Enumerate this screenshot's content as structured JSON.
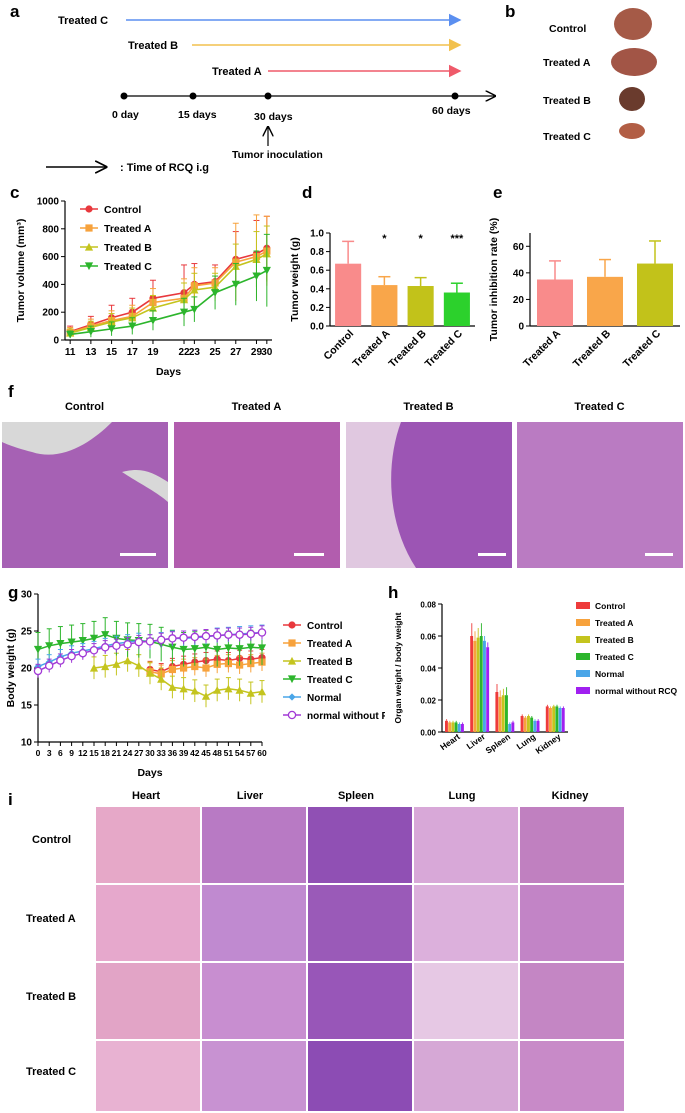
{
  "panels": {
    "a": "a",
    "b": "b",
    "c": "c",
    "d": "d",
    "e": "e",
    "f": "f",
    "g": "g",
    "h": "h",
    "i": "i"
  },
  "timeline": {
    "treatments": [
      {
        "label": "Treated C",
        "color": "#5b8ff0"
      },
      {
        "label": "Treated B",
        "color": "#f2c14e"
      },
      {
        "label": "Treated A",
        "color": "#ef5a6a"
      }
    ],
    "ticks": [
      "0 day",
      "15 days",
      "30 days",
      "60 days"
    ],
    "inoculation": "Tumor inoculation",
    "key": ": Time of RCQ i.g"
  },
  "tumor_photos": {
    "labels": [
      "Control",
      "Treated A",
      "Treated B",
      "Treated C"
    ]
  },
  "histology_f": {
    "labels": [
      "Control",
      "Treated A",
      "Treated B",
      "Treated C"
    ]
  },
  "organ_grid": {
    "columns": [
      "Heart",
      "Liver",
      "Spleen",
      "Lung",
      "Kidney"
    ],
    "rows": [
      "Control",
      "Treated A",
      "Treated B",
      "Treated C"
    ]
  },
  "chart_data": [
    {
      "id": "c",
      "type": "line",
      "title": "",
      "xlabel": "Days",
      "ylabel": "Tumor volume (mm³)",
      "x": [
        11,
        13,
        15,
        17,
        19,
        22,
        23,
        25,
        27,
        29,
        30
      ],
      "ylim": [
        0,
        1000
      ],
      "yticks": [
        0,
        200,
        400,
        600,
        800,
        1000
      ],
      "series": [
        {
          "name": "Control",
          "color": "#e8383d",
          "marker": "circle",
          "values": [
            60,
            110,
            160,
            200,
            300,
            340,
            400,
            420,
            580,
            620,
            660
          ],
          "errors": [
            40,
            60,
            90,
            100,
            130,
            200,
            150,
            120,
            200,
            240,
            230
          ]
        },
        {
          "name": "Treated A",
          "color": "#f7a23c",
          "marker": "square",
          "values": [
            55,
            100,
            140,
            170,
            270,
            300,
            390,
            410,
            560,
            600,
            640
          ],
          "errors": [
            35,
            50,
            70,
            80,
            100,
            140,
            130,
            110,
            280,
            300,
            250
          ]
        },
        {
          "name": "Treated B",
          "color": "#c4c41e",
          "marker": "triangle-up",
          "values": [
            50,
            90,
            130,
            160,
            230,
            290,
            360,
            380,
            530,
            580,
            620
          ],
          "errors": [
            30,
            45,
            60,
            70,
            90,
            120,
            120,
            100,
            160,
            200,
            200
          ]
        },
        {
          "name": "Treated C",
          "color": "#2cb52c",
          "marker": "triangle-down",
          "values": [
            40,
            60,
            80,
            100,
            140,
            200,
            220,
            340,
            400,
            460,
            500
          ],
          "errors": [
            25,
            40,
            50,
            60,
            70,
            100,
            90,
            120,
            150,
            180,
            260
          ]
        }
      ]
    },
    {
      "id": "d",
      "type": "bar",
      "ylabel": "Tumor weight (g)",
      "categories": [
        "Control",
        "Treated A",
        "Treated B",
        "Treated C"
      ],
      "values": [
        0.67,
        0.44,
        0.43,
        0.36
      ],
      "errors": [
        0.24,
        0.09,
        0.09,
        0.1
      ],
      "colors": [
        "#f98b8b",
        "#f9a64a",
        "#c2c21a",
        "#2cd12c"
      ],
      "significance": [
        "",
        "*",
        "*",
        "***"
      ],
      "ylim": [
        0,
        1.0
      ],
      "yticks": [
        "0.0",
        "0.2",
        "0.4",
        "0.6",
        "0.8",
        "1.0"
      ]
    },
    {
      "id": "e",
      "type": "bar",
      "ylabel": "Tumor inhibition rate (%)",
      "categories": [
        "Treated A",
        "Treated B",
        "Treated C"
      ],
      "values": [
        35,
        37,
        47
      ],
      "errors": [
        14,
        13,
        17
      ],
      "colors": [
        "#f98b8b",
        "#f9a64a",
        "#c2c21a"
      ],
      "ylim": [
        0,
        70
      ],
      "yticks": [
        0,
        20,
        40,
        60
      ]
    },
    {
      "id": "g",
      "type": "line",
      "xlabel": "Days",
      "ylabel": "Body weight (g)",
      "x": [
        0,
        3,
        6,
        9,
        12,
        15,
        18,
        21,
        24,
        27,
        30,
        33,
        36,
        39,
        42,
        45,
        48,
        51,
        54,
        57,
        60
      ],
      "xticks": [
        0,
        3,
        6,
        9,
        12,
        15,
        18,
        21,
        24,
        27,
        30,
        33,
        36,
        39,
        42,
        45,
        48,
        51,
        54,
        57,
        60
      ],
      "ylim": [
        10,
        30
      ],
      "yticks": [
        10,
        15,
        20,
        25,
        30
      ],
      "series": [
        {
          "name": "Control",
          "color": "#e8383d",
          "marker": "circle",
          "values": [
            null,
            null,
            null,
            null,
            null,
            null,
            null,
            null,
            null,
            null,
            19.8,
            19.5,
            20.2,
            20.5,
            20.8,
            21.0,
            21.2,
            21.0,
            21.3,
            21.2,
            21.4
          ],
          "error": 1.1
        },
        {
          "name": "Treated A",
          "color": "#f7a23c",
          "marker": "square",
          "values": [
            null,
            null,
            null,
            null,
            null,
            null,
            null,
            null,
            null,
            null,
            19.5,
            19.2,
            19.8,
            20.0,
            20.2,
            20.0,
            20.5,
            20.6,
            20.4,
            20.6,
            20.8
          ],
          "error": 1.2
        },
        {
          "name": "Treated B",
          "color": "#c4c41e",
          "marker": "triangle-up",
          "values": [
            null,
            null,
            null,
            null,
            null,
            20.0,
            20.2,
            20.5,
            21.0,
            20.3,
            19.3,
            18.5,
            17.4,
            17.2,
            16.9,
            16.2,
            17.0,
            17.2,
            17.0,
            16.6,
            16.8
          ],
          "error": 1.5
        },
        {
          "name": "Treated C",
          "color": "#2cb52c",
          "marker": "triangle-down",
          "values": [
            22.5,
            23.0,
            23.3,
            23.5,
            23.7,
            24.0,
            24.5,
            24.0,
            23.8,
            23.7,
            23.6,
            23.2,
            22.8,
            22.5,
            22.6,
            22.8,
            22.5,
            22.7,
            22.6,
            22.8,
            22.7
          ],
          "error": 2.3
        },
        {
          "name": "Normal",
          "color": "#4aa6e8",
          "marker": "diamond",
          "values": [
            20.2,
            20.8,
            21.5,
            22.0,
            22.3,
            22.6,
            23.0,
            23.3,
            23.5,
            23.7,
            23.5,
            23.8,
            24.0,
            24.0,
            24.1,
            24.2,
            24.4,
            24.5,
            24.6,
            24.7,
            24.8
          ],
          "error": 1.0
        },
        {
          "name": "normal without RCQ",
          "color": "#a23ad6",
          "marker": "circle-open",
          "values": [
            19.6,
            20.3,
            21.0,
            21.6,
            22.0,
            22.4,
            22.8,
            23.0,
            23.2,
            23.5,
            23.6,
            23.8,
            24.0,
            24.1,
            24.2,
            24.3,
            24.4,
            24.5,
            24.5,
            24.6,
            24.8
          ],
          "error": 0.9
        }
      ]
    },
    {
      "id": "h",
      "type": "bar",
      "ylabel": "Organ weight / body weight",
      "categories": [
        "Heart",
        "Liver",
        "Spleen",
        "Lung",
        "Kidney"
      ],
      "ylim": [
        0,
        0.08
      ],
      "yticks": [
        "0.00",
        "0.02",
        "0.04",
        "0.06",
        "0.08"
      ],
      "series": [
        {
          "name": "Control",
          "color": "#ee3b3b",
          "values": [
            0.007,
            0.06,
            0.025,
            0.01,
            0.016
          ],
          "errors": [
            0.001,
            0.008,
            0.005,
            0.001,
            0.001
          ]
        },
        {
          "name": "Treated A",
          "color": "#f7a23c",
          "values": [
            0.006,
            0.057,
            0.022,
            0.009,
            0.015
          ],
          "errors": [
            0.001,
            0.006,
            0.004,
            0.001,
            0.001
          ]
        },
        {
          "name": "Treated B",
          "color": "#c4c41e",
          "values": [
            0.006,
            0.059,
            0.023,
            0.01,
            0.016
          ],
          "errors": [
            0.001,
            0.006,
            0.004,
            0.001,
            0.001
          ]
        },
        {
          "name": "Treated C",
          "color": "#2cb52c",
          "values": [
            0.006,
            0.06,
            0.023,
            0.009,
            0.016
          ],
          "errors": [
            0.001,
            0.008,
            0.005,
            0.001,
            0.001
          ]
        },
        {
          "name": "Normal",
          "color": "#4aa6e8",
          "values": [
            0.005,
            0.057,
            0.005,
            0.007,
            0.015
          ],
          "errors": [
            0.001,
            0.003,
            0.001,
            0.001,
            0.001
          ]
        },
        {
          "name": "normal without RCQ",
          "color": "#a020f0",
          "values": [
            0.005,
            0.053,
            0.006,
            0.007,
            0.015
          ],
          "errors": [
            0.001,
            0.003,
            0.001,
            0.001,
            0.001
          ]
        }
      ]
    }
  ]
}
